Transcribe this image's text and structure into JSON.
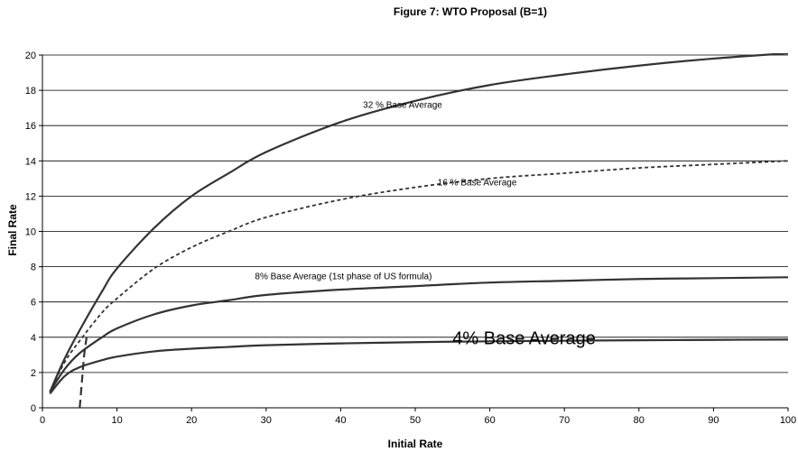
{
  "chart_data": {
    "type": "line",
    "title": "Figure 7: WTO Proposal (B=1)",
    "xlabel": "Initial Rate",
    "ylabel": "Final Rate",
    "xlim": [
      0,
      100
    ],
    "ylim": [
      0,
      20
    ],
    "x_ticks": [
      "0",
      "10",
      "20",
      "30",
      "40",
      "50",
      "60",
      "70",
      "80",
      "90",
      "100"
    ],
    "y_ticks": [
      "0",
      "2",
      "4",
      "6",
      "8",
      "10",
      "12",
      "14",
      "16",
      "18",
      "20"
    ],
    "grid": "horizontal",
    "legend": "none",
    "series": [
      {
        "name": "32 % Base Average",
        "style": "solid",
        "color": "#333333",
        "x": [
          1,
          3,
          5,
          8,
          10,
          15,
          20,
          25,
          30,
          40,
          50,
          60,
          70,
          80,
          90,
          100
        ],
        "y": [
          0.9,
          2.8,
          4.4,
          6.6,
          7.9,
          10.2,
          12.0,
          13.3,
          14.5,
          16.2,
          17.4,
          18.3,
          18.9,
          19.4,
          19.8,
          20.1
        ]
      },
      {
        "name": "16 % Base Average",
        "style": "dashed",
        "color": "#333333",
        "x": [
          1,
          3,
          5,
          8,
          10,
          15,
          20,
          25,
          30,
          40,
          50,
          60,
          70,
          80,
          90,
          100
        ],
        "y": [
          0.9,
          2.6,
          3.8,
          5.4,
          6.2,
          7.9,
          9.1,
          10.0,
          10.8,
          11.8,
          12.5,
          13.0,
          13.3,
          13.6,
          13.8,
          14.0
        ]
      },
      {
        "name": "8% Base Average (1st phase of US formula)",
        "style": "solid",
        "color": "#333333",
        "x": [
          1,
          3,
          5,
          8,
          10,
          15,
          20,
          25,
          30,
          40,
          50,
          60,
          70,
          80,
          90,
          100
        ],
        "y": [
          0.9,
          2.2,
          3.1,
          4.0,
          4.5,
          5.3,
          5.8,
          6.1,
          6.4,
          6.7,
          6.9,
          7.1,
          7.2,
          7.3,
          7.35,
          7.4
        ]
      },
      {
        "name": "4% Base Average",
        "style": "solid",
        "color": "#333333",
        "x": [
          1,
          3,
          5,
          8,
          10,
          15,
          20,
          25,
          30,
          40,
          50,
          60,
          70,
          80,
          90,
          100
        ],
        "y": [
          0.8,
          1.8,
          2.3,
          2.7,
          2.9,
          3.2,
          3.35,
          3.45,
          3.55,
          3.65,
          3.72,
          3.77,
          3.8,
          3.83,
          3.85,
          3.87
        ]
      },
      {
        "name": "",
        "style": "long-dash",
        "color": "#333333",
        "x": [
          5,
          5.3,
          5.6,
          6.0
        ],
        "y": [
          0,
          1.5,
          3.0,
          4.2
        ]
      }
    ],
    "annotations": [
      {
        "text": "32 % Base Average",
        "x": 43,
        "y": 17.0
      },
      {
        "text": "16 % Base Average",
        "x": 53,
        "y": 12.6
      },
      {
        "text": "8% Base Average (1st phase of US formula)",
        "x": 28.5,
        "y": 7.3
      },
      {
        "text": "4% Base Average",
        "x": 55,
        "y": 3.6
      }
    ]
  }
}
